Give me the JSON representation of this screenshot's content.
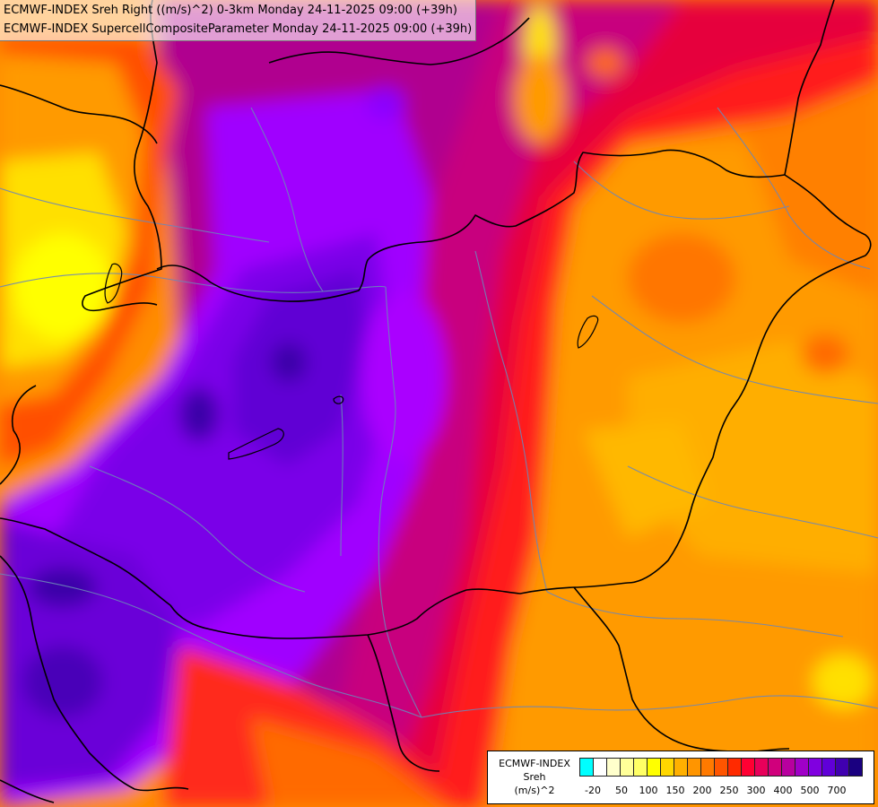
{
  "titles": [
    "ECMWF-INDEX Sreh Right ((m/s)^2) 0-3km Monday 24-11-2025 09:00 (+39h)",
    "ECMWF-INDEX SupercellCompositeParameter Monday 24-11-2025 09:00 (+39h)"
  ],
  "legend": {
    "label_lines": [
      "ECMWF-INDEX",
      "Sreh",
      "(m/s)^2"
    ],
    "ticks": [
      "-20",
      "50",
      "100",
      "150",
      "200",
      "250",
      "300",
      "400",
      "500",
      "700"
    ],
    "colors": [
      "#00ffff",
      "#ffffff",
      "#ffffcc",
      "#ffff99",
      "#ffff66",
      "#ffff00",
      "#ffd700",
      "#ffb000",
      "#ff9500",
      "#ff7a00",
      "#ff5500",
      "#ff2a00",
      "#ff0033",
      "#e8005a",
      "#d0007c",
      "#b8009f",
      "#a000c8",
      "#8000e0",
      "#6000d8",
      "#4000b0",
      "#1a0080"
    ]
  },
  "map": {
    "region": "Hungary and surrounding countries",
    "colors": {
      "violet": "#a000ff",
      "indigo": "#6a00d8",
      "navy": "#3a00a8",
      "magenta": "#c8007e",
      "pink": "#e0005a",
      "red": "#ff1a1a",
      "orange": "#ff8c00",
      "amber": "#ffb000",
      "yellow": "#ffff00"
    }
  }
}
